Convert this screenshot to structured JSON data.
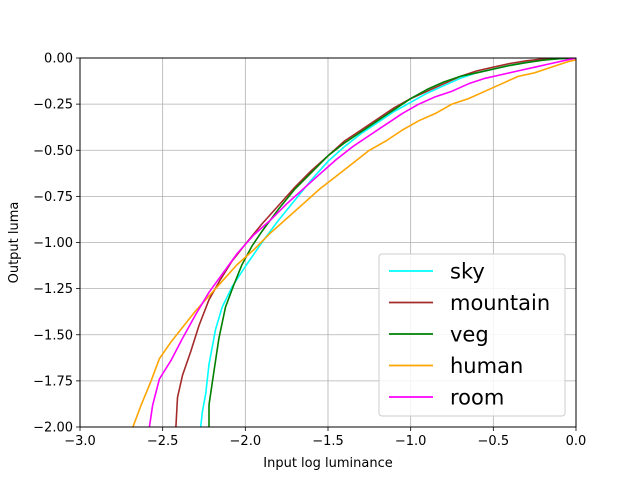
{
  "chart_data": {
    "type": "line",
    "xlabel": "Input log luminance",
    "ylabel": "Output luma",
    "xlim": [
      -3.0,
      0.0
    ],
    "ylim": [
      -2.0,
      0.0
    ],
    "xticks": [
      "−3.0",
      "−2.5",
      "−2.0",
      "−1.5",
      "−1.0",
      "−0.5",
      "0.0"
    ],
    "yticks": [
      "0.00",
      "−0.25",
      "−0.50",
      "−0.75",
      "−1.00",
      "−1.25",
      "−1.50",
      "−1.75",
      "−2.00"
    ],
    "grid": true,
    "legend_position": "lower-right",
    "series": [
      {
        "name": "sky",
        "color": "#00ffff",
        "x": [
          -2.27,
          -2.26,
          -2.24,
          -2.22,
          -2.18,
          -2.14,
          -2.08,
          -2.0,
          -1.9,
          -1.8,
          -1.7,
          -1.6,
          -1.5,
          -1.4,
          -1.3,
          -1.2,
          -1.1,
          -1.0,
          -0.9,
          -0.8,
          -0.7,
          -0.6,
          -0.5,
          -0.4,
          -0.3,
          -0.2,
          -0.1,
          0.0
        ],
        "y": [
          -2.0,
          -1.92,
          -1.82,
          -1.66,
          -1.47,
          -1.35,
          -1.24,
          -1.13,
          -1.0,
          -0.88,
          -0.77,
          -0.66,
          -0.56,
          -0.48,
          -0.41,
          -0.35,
          -0.29,
          -0.24,
          -0.19,
          -0.15,
          -0.11,
          -0.08,
          -0.06,
          -0.04,
          -0.025,
          -0.01,
          -0.003,
          0.0
        ]
      },
      {
        "name": "mountain",
        "color": "#a52a2a",
        "x": [
          -2.42,
          -2.41,
          -2.38,
          -2.33,
          -2.28,
          -2.22,
          -2.15,
          -2.08,
          -2.0,
          -1.9,
          -1.8,
          -1.7,
          -1.6,
          -1.5,
          -1.4,
          -1.3,
          -1.2,
          -1.1,
          -1.0,
          -0.9,
          -0.8,
          -0.7,
          -0.6,
          -0.5,
          -0.4,
          -0.3,
          -0.2,
          -0.1,
          0.0
        ],
        "y": [
          -2.0,
          -1.84,
          -1.72,
          -1.59,
          -1.45,
          -1.31,
          -1.2,
          -1.1,
          -1.01,
          -0.9,
          -0.8,
          -0.7,
          -0.61,
          -0.53,
          -0.45,
          -0.39,
          -0.33,
          -0.27,
          -0.22,
          -0.18,
          -0.14,
          -0.1,
          -0.07,
          -0.05,
          -0.03,
          -0.015,
          -0.005,
          -0.001,
          0.0
        ]
      },
      {
        "name": "veg",
        "color": "#008000",
        "x": [
          -2.22,
          -2.22,
          -2.19,
          -2.16,
          -2.12,
          -2.07,
          -2.02,
          -1.96,
          -1.9,
          -1.8,
          -1.7,
          -1.6,
          -1.5,
          -1.4,
          -1.3,
          -1.2,
          -1.1,
          -1.0,
          -0.9,
          -0.8,
          -0.7,
          -0.6,
          -0.5,
          -0.4,
          -0.3,
          -0.2,
          -0.1,
          0.0
        ],
        "y": [
          -2.0,
          -1.88,
          -1.7,
          -1.52,
          -1.35,
          -1.23,
          -1.12,
          -1.02,
          -0.94,
          -0.82,
          -0.71,
          -0.62,
          -0.53,
          -0.46,
          -0.4,
          -0.34,
          -0.28,
          -0.22,
          -0.17,
          -0.13,
          -0.1,
          -0.08,
          -0.06,
          -0.04,
          -0.025,
          -0.012,
          -0.004,
          0.0
        ]
      },
      {
        "name": "human",
        "color": "#ffa500",
        "x": [
          -2.68,
          -2.63,
          -2.57,
          -2.52,
          -2.45,
          -2.38,
          -2.3,
          -2.22,
          -2.14,
          -2.05,
          -1.95,
          -1.85,
          -1.75,
          -1.65,
          -1.55,
          -1.45,
          -1.35,
          -1.25,
          -1.15,
          -1.05,
          -0.95,
          -0.85,
          -0.75,
          -0.65,
          -0.55,
          -0.45,
          -0.35,
          -0.25,
          -0.15,
          -0.05,
          0.0
        ],
        "y": [
          -2.0,
          -1.88,
          -1.75,
          -1.63,
          -1.54,
          -1.46,
          -1.37,
          -1.29,
          -1.21,
          -1.12,
          -1.04,
          -0.95,
          -0.87,
          -0.79,
          -0.71,
          -0.64,
          -0.57,
          -0.5,
          -0.45,
          -0.39,
          -0.34,
          -0.3,
          -0.25,
          -0.22,
          -0.18,
          -0.14,
          -0.1,
          -0.08,
          -0.05,
          -0.02,
          -0.01
        ]
      },
      {
        "name": "room",
        "color": "#ff00ff",
        "x": [
          -2.58,
          -2.56,
          -2.52,
          -2.45,
          -2.38,
          -2.3,
          -2.22,
          -2.13,
          -2.05,
          -1.95,
          -1.85,
          -1.75,
          -1.65,
          -1.55,
          -1.45,
          -1.35,
          -1.25,
          -1.15,
          -1.05,
          -0.95,
          -0.85,
          -0.75,
          -0.65,
          -0.55,
          -0.45,
          -0.35,
          -0.25,
          -0.15,
          -0.05,
          0.0
        ],
        "y": [
          -2.0,
          -1.88,
          -1.74,
          -1.64,
          -1.52,
          -1.39,
          -1.27,
          -1.16,
          -1.06,
          -0.96,
          -0.88,
          -0.79,
          -0.71,
          -0.63,
          -0.55,
          -0.48,
          -0.42,
          -0.36,
          -0.3,
          -0.25,
          -0.21,
          -0.18,
          -0.14,
          -0.11,
          -0.09,
          -0.07,
          -0.05,
          -0.03,
          -0.01,
          0.0
        ]
      }
    ]
  }
}
